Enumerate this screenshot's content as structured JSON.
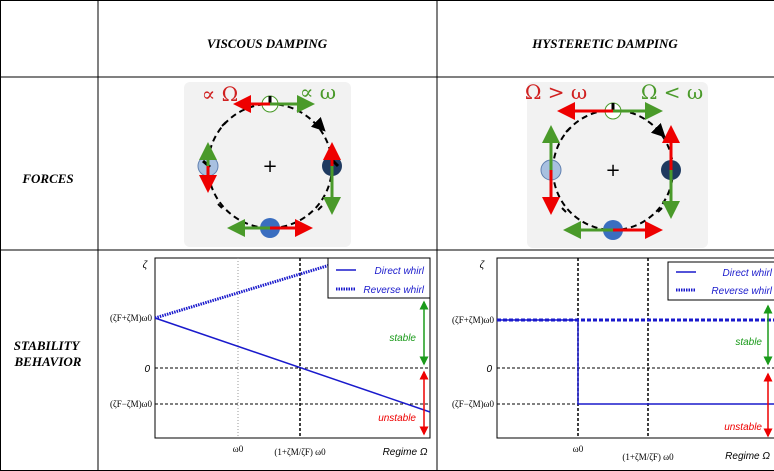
{
  "table": {
    "columns": [
      "VISCOUS DAMPING",
      "HYSTERETIC DAMPING"
    ],
    "rows": [
      {
        "label": "FORCES",
        "viscous": {
          "labels": [
            "∝ Ω",
            "∝ ω"
          ]
        },
        "hysteretic": {
          "labels": [
            "Ω > ω",
            "Ω < ω"
          ]
        }
      },
      {
        "label": "STABILITY BEHAVIOR",
        "viscous": {
          "y_axis": "ζ",
          "y_labels": [
            "(ζF+ζM)ω0",
            "0",
            "(ζF−ζM)ω0"
          ],
          "x_labels": [
            "ω0",
            "(1+ζM/ζF) ω0",
            "Regime Ω"
          ],
          "legend": [
            "Direct whirl",
            "Reverse whirl"
          ],
          "stable": "stable",
          "unstable": "unstable"
        },
        "hysteretic": {
          "y_axis": "ζ",
          "y_labels": [
            "(ζF+ζM)ω0",
            "0",
            "(ζF−ζM)ω0"
          ],
          "x_labels": [
            "ω0",
            "(1+ζM/ζF) ω0",
            "Regime Ω"
          ],
          "legend": [
            "Direct whirl",
            "Reverse whirl"
          ],
          "stable": "stable",
          "unstable": "unstable"
        }
      }
    ]
  }
}
